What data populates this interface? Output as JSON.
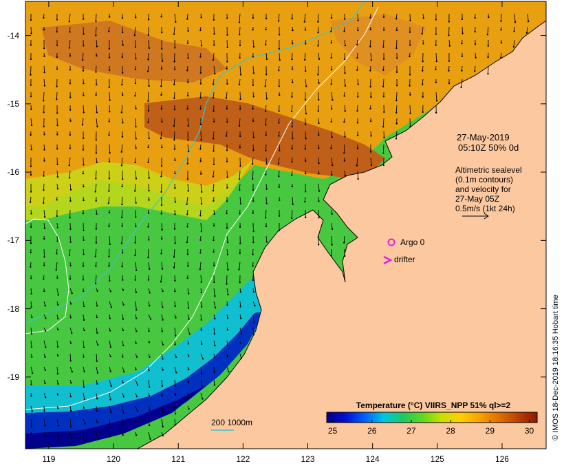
{
  "axes": {
    "x_ticks": [
      119,
      120,
      121,
      122,
      123,
      124,
      125,
      126
    ],
    "y_ticks": [
      -14,
      -15,
      -16,
      -17,
      -18,
      -19
    ],
    "x_range": [
      118.64,
      126.68
    ],
    "y_range": [
      -20.05,
      -13.5
    ]
  },
  "info": {
    "date": "27-May-2019",
    "time_line": "05:10Z  50% 0d",
    "alt_lines": [
      "Altimetric sealevel",
      "(0.1m contours)",
      "and velocity for",
      "27-May 05Z",
      "0.5m/s (1kt 24h)"
    ]
  },
  "markers": {
    "argo_label": "Argo 0",
    "drifter_label": "drifter",
    "color": "#e020e0"
  },
  "bathymetry_legend": {
    "label": "200  1000m",
    "color": "#40c0c8"
  },
  "colorbar": {
    "title": "Temperature (°C) VIIRS_NPP 51% ql>=2",
    "ticks": [
      25,
      26,
      27,
      28,
      29,
      30
    ],
    "range": [
      24.85,
      30.2
    ],
    "colors": [
      "#00008c",
      "#0010d0",
      "#0060ff",
      "#00c8e0",
      "#20c860",
      "#60d820",
      "#c8e000",
      "#ffd000",
      "#f8a000",
      "#e07000",
      "#b84000",
      "#8c1800"
    ]
  },
  "credit": "© IMOS 18-Dec-2019 18:16:35 Hobart time",
  "land_color": "#fcc8a0",
  "coast_color": "#000000"
}
